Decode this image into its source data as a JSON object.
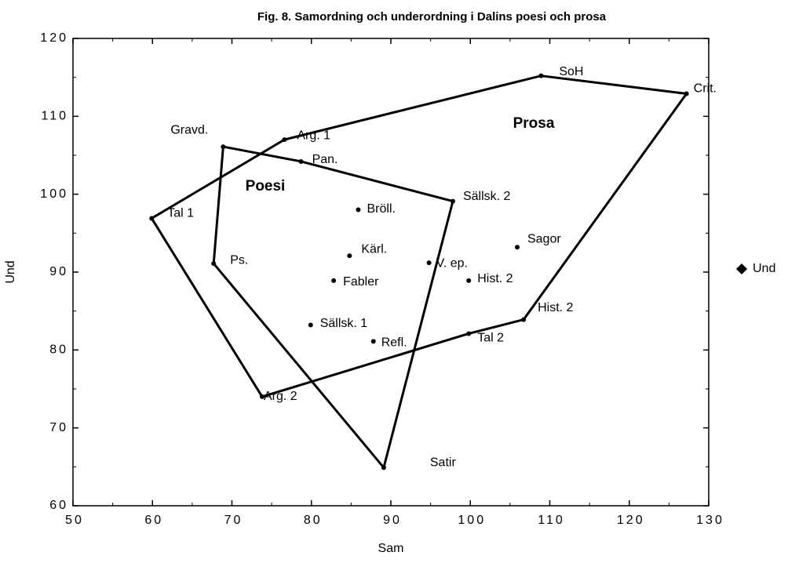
{
  "chart_data": {
    "type": "scatter",
    "title": "Fig. 8. Samordning och underordning i Dalins poesi och prosa",
    "xlabel": "Sam",
    "ylabel": "Und",
    "xlim": [
      50,
      130
    ],
    "ylim": [
      60,
      120
    ],
    "xticks": [
      50,
      60,
      70,
      80,
      90,
      100,
      110,
      120,
      130
    ],
    "yticks": [
      60,
      70,
      80,
      90,
      100,
      110,
      120
    ],
    "series": [
      {
        "name": "Und",
        "color": "#000000",
        "labels": [
          "SoH",
          "Crit.",
          "Arg. 1",
          "Gravd.",
          "Pan.",
          "Sällsk. 2",
          "Tal 1",
          "Bröll.",
          "Sagor",
          "Kärl.",
          "V. ep.",
          "Ps.",
          "Fabler",
          "Hist. 2",
          "Hist. 2",
          "Sällsk. 1",
          "Tal 2",
          "Refl.",
          "Arg. 2",
          "Satir"
        ],
        "x": [
          108.9,
          127.2,
          76.6,
          68.9,
          78.7,
          97.8,
          59.9,
          85.9,
          105.9,
          84.8,
          94.8,
          67.7,
          82.8,
          99.8,
          106.7,
          79.9,
          99.8,
          87.8,
          73.8,
          89.1
        ],
        "y": [
          115.2,
          112.9,
          107.0,
          106.1,
          104.2,
          99.1,
          96.9,
          98.0,
          93.2,
          92.1,
          91.2,
          91.1,
          88.9,
          88.9,
          83.9,
          83.2,
          82.1,
          81.1,
          74.0,
          64.9
        ]
      }
    ],
    "regions": [
      {
        "name": "Poesi",
        "x": [
          68.9,
          78.7,
          97.8,
          89.1,
          67.7
        ],
        "y": [
          106.1,
          104.2,
          99.1,
          64.9,
          91.1
        ]
      },
      {
        "name": "Prosa",
        "x": [
          59.9,
          76.6,
          108.9,
          127.2,
          106.7,
          99.8,
          73.8
        ],
        "y": [
          96.9,
          107.0,
          115.2,
          112.9,
          83.9,
          82.1,
          74.0
        ]
      }
    ]
  }
}
